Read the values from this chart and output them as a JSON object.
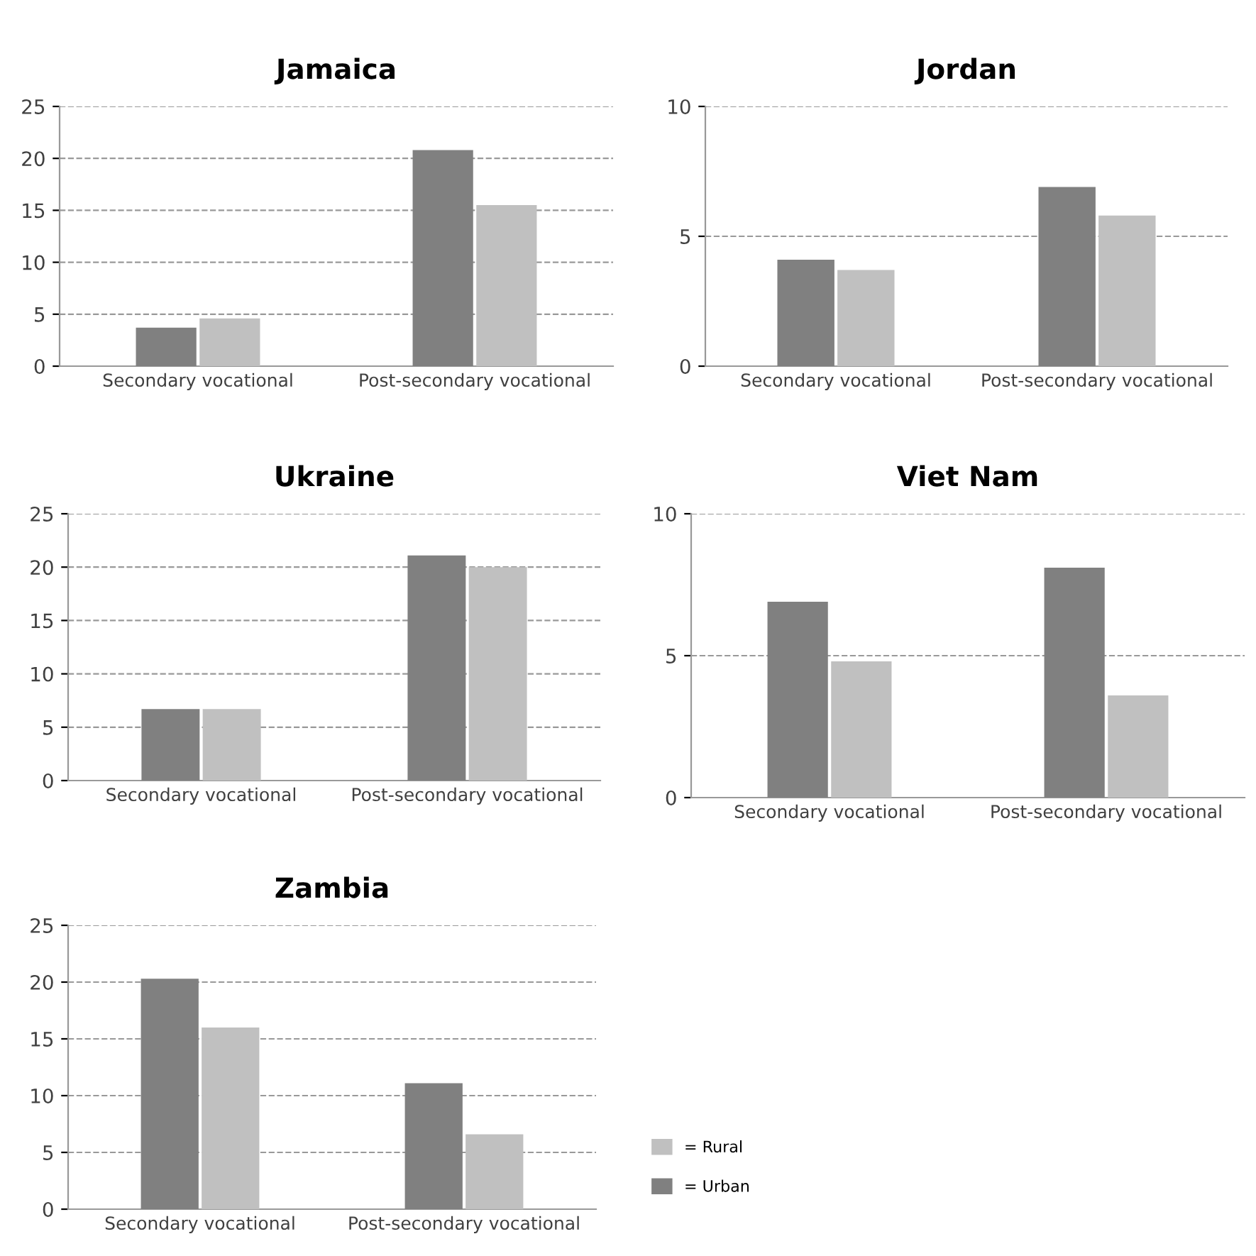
{
  "chart_data": [
    {
      "type": "bar",
      "title": "Jamaica",
      "categories": [
        "Secondary vocational",
        "Post-secondary vocational"
      ],
      "series": [
        {
          "color": "#808080",
          "values": [
            3.7,
            20.8
          ]
        },
        {
          "color": "#c0c0c0",
          "values": [
            4.6,
            15.5
          ]
        }
      ],
      "ylim": [
        0,
        25
      ],
      "yticks": [
        0,
        5,
        10,
        15,
        20,
        25
      ],
      "grid": "y"
    },
    {
      "type": "bar",
      "title": "Jordan",
      "categories": [
        "Secondary vocational",
        "Post-secondary vocational"
      ],
      "series": [
        {
          "color": "#808080",
          "values": [
            4.1,
            6.9
          ]
        },
        {
          "color": "#c0c0c0",
          "values": [
            3.7,
            5.8
          ]
        }
      ],
      "ylim": [
        0,
        10
      ],
      "yticks": [
        0,
        5,
        10
      ],
      "grid": "y"
    },
    {
      "type": "bar",
      "title": "Ukraine",
      "categories": [
        "Secondary vocational",
        "Post-secondary vocational"
      ],
      "series": [
        {
          "color": "#808080",
          "values": [
            6.7,
            21.1
          ]
        },
        {
          "color": "#c0c0c0",
          "values": [
            6.7,
            20.0
          ]
        }
      ],
      "ylim": [
        0,
        25
      ],
      "yticks": [
        0,
        5,
        10,
        15,
        20,
        25
      ],
      "grid": "y"
    },
    {
      "type": "bar",
      "title": "Viet Nam",
      "categories": [
        "Secondary vocational",
        "Post-secondary vocational"
      ],
      "series": [
        {
          "color": "#808080",
          "values": [
            6.9,
            8.1
          ]
        },
        {
          "color": "#c0c0c0",
          "values": [
            4.8,
            3.6
          ]
        }
      ],
      "ylim": [
        0,
        10
      ],
      "yticks": [
        0,
        5,
        10
      ],
      "grid": "y"
    },
    {
      "type": "bar",
      "title": "Zambia",
      "categories": [
        "Secondary vocational",
        "Post-secondary vocational"
      ],
      "series": [
        {
          "name": "= Urban",
          "color": "#808080",
          "values": [
            20.3,
            11.1
          ]
        },
        {
          "name": "= Rural",
          "color": "#c0c0c0",
          "values": [
            16.0,
            6.6
          ]
        }
      ],
      "ylim": [
        0,
        25
      ],
      "yticks": [
        0,
        5,
        10,
        15,
        20,
        25
      ],
      "grid": "y",
      "legend": "right"
    }
  ]
}
